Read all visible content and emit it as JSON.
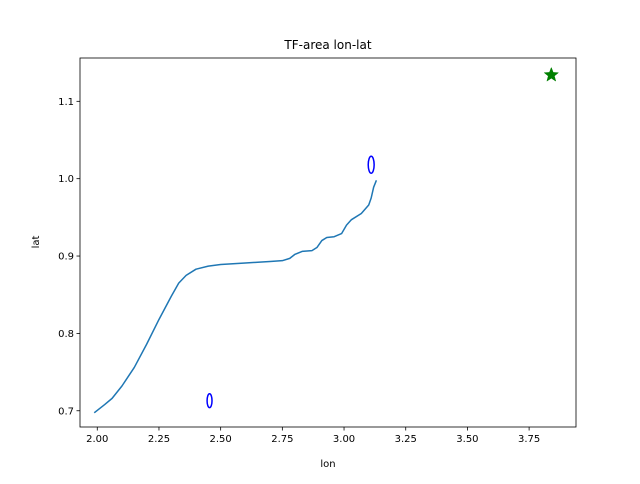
{
  "chart_data": {
    "type": "line",
    "title": "TF-area lon-lat",
    "xlabel": "lon",
    "ylabel": "lat",
    "xlim": [
      1.93,
      3.94
    ],
    "ylim": [
      0.679,
      1.156
    ],
    "xticks": [
      2.0,
      2.25,
      2.5,
      2.75,
      3.0,
      3.25,
      3.5,
      3.75
    ],
    "xtick_labels": [
      "2.00",
      "2.25",
      "2.50",
      "2.75",
      "3.00",
      "3.25",
      "3.50",
      "3.75"
    ],
    "yticks": [
      0.7,
      0.8,
      0.9,
      1.0,
      1.1
    ],
    "ytick_labels": [
      "0.7",
      "0.8",
      "0.9",
      "1.0",
      "1.1"
    ],
    "grid": false,
    "legend": null,
    "series": [
      {
        "color": "#1f77b4",
        "x": [
          1.99,
          2.03,
          2.06,
          2.1,
          2.15,
          2.2,
          2.25,
          2.3,
          2.33,
          2.36,
          2.4,
          2.45,
          2.5,
          2.55,
          2.6,
          2.65,
          2.7,
          2.75,
          2.78,
          2.8,
          2.83,
          2.87,
          2.89,
          2.91,
          2.93,
          2.96,
          2.99,
          3.01,
          3.03,
          3.07,
          3.1,
          3.11,
          3.12,
          3.13
        ],
        "y": [
          0.698,
          0.708,
          0.716,
          0.732,
          0.756,
          0.786,
          0.818,
          0.848,
          0.865,
          0.875,
          0.883,
          0.887,
          0.889,
          0.89,
          0.891,
          0.892,
          0.893,
          0.894,
          0.897,
          0.902,
          0.906,
          0.907,
          0.911,
          0.92,
          0.924,
          0.925,
          0.929,
          0.94,
          0.947,
          0.955,
          0.966,
          0.975,
          0.989,
          0.997
        ]
      }
    ],
    "markers": [
      {
        "type": "ellipse",
        "x": 3.11,
        "y": 1.018,
        "rx": 0.012,
        "ry": 0.011,
        "color": "#0000ff"
      },
      {
        "type": "ellipse",
        "x": 2.455,
        "y": 0.713,
        "rx": 0.01,
        "ry": 0.009,
        "color": "#0000ff"
      },
      {
        "type": "star",
        "x": 3.84,
        "y": 1.134,
        "color": "#008000"
      }
    ]
  }
}
